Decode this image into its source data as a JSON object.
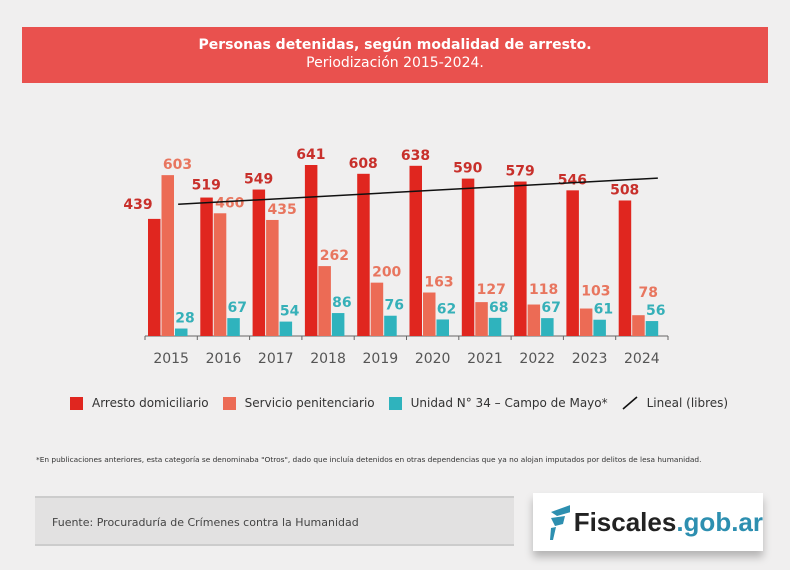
{
  "chart_data": {
    "type": "bar",
    "title": "Personas detenidas, según modalidad de arresto.",
    "subtitle": "Periodización 2015-2024.",
    "categories": [
      "2015",
      "2016",
      "2017",
      "2018",
      "2019",
      "2020",
      "2021",
      "2022",
      "2023",
      "2024"
    ],
    "series": [
      {
        "name": "Arresto domiciliario",
        "color": "#e0261f",
        "label_color": "#c8302b",
        "values": [
          439,
          519,
          549,
          641,
          608,
          638,
          590,
          579,
          546,
          508
        ]
      },
      {
        "name": "Servicio penitenciario",
        "color": "#ec6b55",
        "label_color": "#e8765f",
        "values": [
          603,
          460,
          435,
          262,
          200,
          163,
          127,
          118,
          103,
          78
        ]
      },
      {
        "name": "Unidad N° 34 – Campo de Mayo*",
        "color": "#2fb3bd",
        "label_color": "#36b0b8",
        "values": [
          28,
          67,
          54,
          86,
          76,
          62,
          68,
          67,
          61,
          56
        ]
      }
    ],
    "trendline": {
      "name": "Lineal (libres)",
      "color": "#111111",
      "start": 494,
      "end": 592
    },
    "ylim": [
      0,
      700
    ],
    "grid": false,
    "legend": "bottom"
  },
  "footnote": "*En publicaciones anteriores, esta categoría se denominaba \"Otros\", dado que incluía detenidos en otras dependencias que ya no alojan imputados por delitos de lesa humanidad.",
  "source": "Fuente: Procuraduría de Crímenes contra la Humanidad",
  "logo": {
    "text_a": "Fiscales",
    "text_b": ".gob.ar",
    "color": "#2d8fb0"
  }
}
